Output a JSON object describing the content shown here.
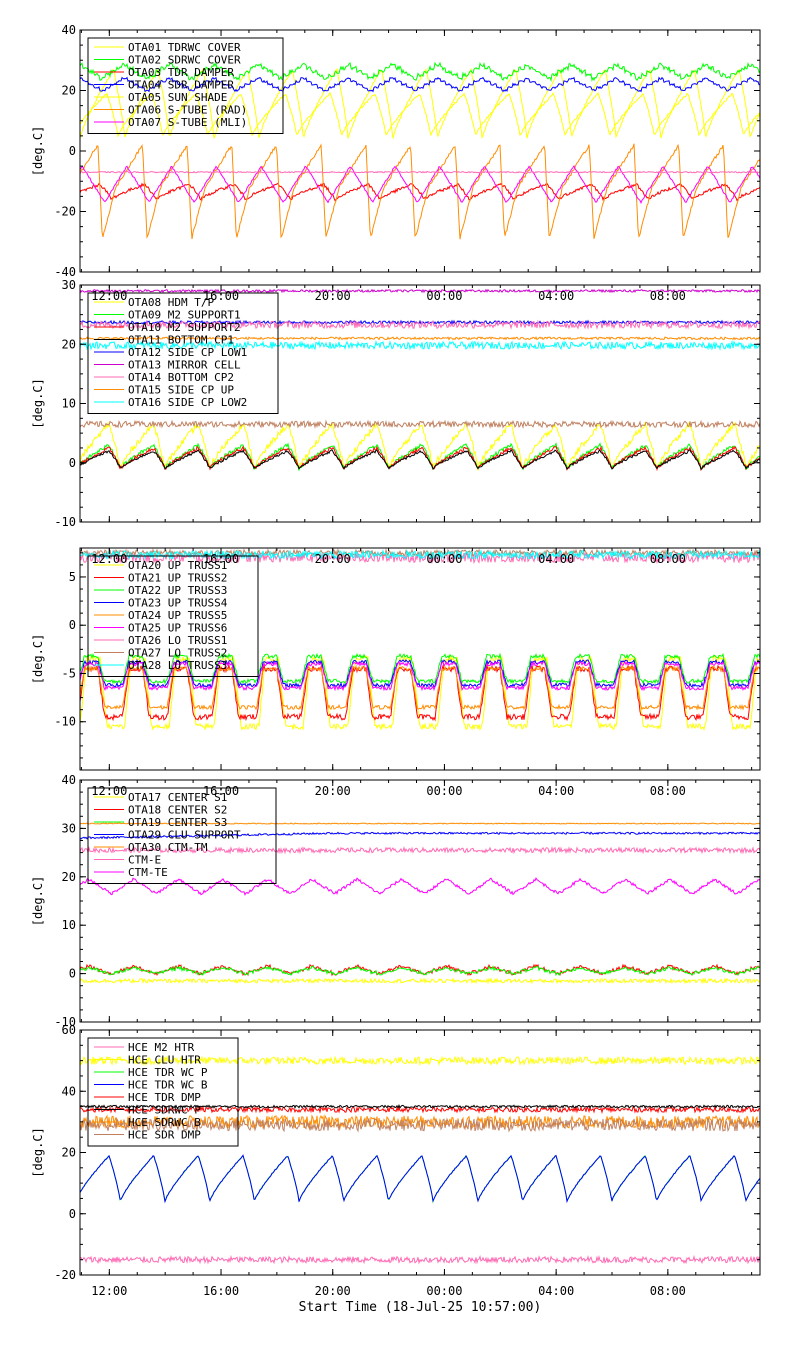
{
  "x_axis": {
    "title": "Start Time (18-Jul-25 10:57:00)",
    "tick_labels": [
      "12:00",
      "16:00",
      "20:00",
      "00:00",
      "04:00",
      "08:00"
    ],
    "tick_hours": [
      12,
      16,
      20,
      24,
      28,
      32
    ],
    "range_hours": [
      10.95,
      35.3
    ]
  },
  "chart_data": [
    {
      "type": "line",
      "ylabel": "[deg.C]",
      "ylim": [
        -40,
        40
      ],
      "yticks": [
        -40,
        -20,
        0,
        20,
        40
      ],
      "x_tick_labels_shown": false,
      "legend": "top-left",
      "series": [
        {
          "name": "OTA01 TDRWC COVER",
          "color": "#ffff00",
          "wave": {
            "type": "saw",
            "min": 4,
            "max": 27,
            "phase": 0.0,
            "noise": 0.3
          }
        },
        {
          "name": "OTA02 SDRWC COVER",
          "color": "#00ff00",
          "wave": {
            "type": "step",
            "min": 24,
            "max": 28.5,
            "phase": 0.5,
            "noise": 0.6
          }
        },
        {
          "name": "OTA03 TDR DAMPER",
          "color": "#ff0000",
          "wave": {
            "type": "saw",
            "min": -16,
            "max": -11,
            "phase": 0.3,
            "noise": 0.5
          }
        },
        {
          "name": "OTA04 SDR DAMPER",
          "color": "#0000ff",
          "wave": {
            "type": "step",
            "min": 20,
            "max": 24,
            "phase": 0.5,
            "noise": 0.3
          }
        },
        {
          "name": "OTA05 SUN SHADE",
          "color": "#ffff00",
          "wave": {
            "type": "saw",
            "min": 5,
            "max": 19,
            "phase": 0.15,
            "noise": 0.3
          }
        },
        {
          "name": "OTA06 S-TUBE (RAD)",
          "color": "#ff8c00",
          "wave": {
            "type": "spike",
            "min": -29,
            "max": 2,
            "phase": 0.2,
            "noise": 0.5
          }
        },
        {
          "name": "OTA07 S-TUBE (MLI)",
          "color": "#ff00ff",
          "wave": {
            "type": "tri",
            "min": -17,
            "max": -5,
            "phase": 0.45,
            "noise": 0.3
          }
        },
        {
          "name": "",
          "color": "#ff69b4",
          "wave": {
            "type": "flat",
            "min": -7,
            "max": -7,
            "phase": 0,
            "noise": 0.2
          }
        }
      ]
    },
    {
      "type": "line",
      "ylabel": "[deg.C]",
      "ylim": [
        -10,
        30
      ],
      "yticks": [
        -10,
        0,
        10,
        20,
        30
      ],
      "x_tick_labels_shown": true,
      "legend": "top-left",
      "series": [
        {
          "name": "OTA08 HDM T/P",
          "color": "#ffff00",
          "wave": {
            "type": "saw",
            "min": -1,
            "max": 6.5,
            "phase": 0.1,
            "noise": 0.5
          }
        },
        {
          "name": "OTA09 M2 SUPPORT1",
          "color": "#00ff00",
          "wave": {
            "type": "saw",
            "min": -1,
            "max": 3,
            "phase": 0.1,
            "noise": 0.3
          }
        },
        {
          "name": "OTA10 M2 SUPPORT2",
          "color": "#ff0000",
          "wave": {
            "type": "saw",
            "min": -1,
            "max": 2.5,
            "phase": 0.1,
            "noise": 0.3
          }
        },
        {
          "name": "OTA11 BOTTOM CP1",
          "color": "#000000",
          "wave": {
            "type": "saw",
            "min": -1,
            "max": 2,
            "phase": 0.1,
            "noise": 0.2
          }
        },
        {
          "name": "OTA12 SIDE CP LOW1",
          "color": "#0000ff",
          "wave": {
            "type": "flat",
            "min": 23.7,
            "max": 23.7,
            "phase": 0,
            "noise": 0.25
          }
        },
        {
          "name": "OTA13 MIRROR CELL",
          "color": "#cc00cc",
          "wave": {
            "type": "flat",
            "min": 29,
            "max": 29,
            "phase": 0,
            "noise": 0.2
          }
        },
        {
          "name": "OTA14 BOTTOM CP2",
          "color": "#ff69b4",
          "wave": {
            "type": "flat",
            "min": 23.3,
            "max": 23.3,
            "phase": 0,
            "noise": 0.6
          }
        },
        {
          "name": "OTA15 SIDE CP UP",
          "color": "#ff8c00",
          "wave": {
            "type": "flat",
            "min": 21,
            "max": 21,
            "phase": 0,
            "noise": 0.2
          }
        },
        {
          "name": "OTA16 SIDE CP LOW2",
          "color": "#00ffff",
          "wave": {
            "type": "flat",
            "min": 19.8,
            "max": 19.8,
            "phase": 0,
            "noise": 0.6
          }
        },
        {
          "name": "",
          "color": "#c08060",
          "wave": {
            "type": "flat",
            "min": 6.5,
            "max": 6.5,
            "phase": 0,
            "noise": 0.5
          }
        }
      ]
    },
    {
      "type": "line",
      "ylabel": "[deg.C]",
      "ylim": [
        -15,
        8
      ],
      "yticks": [
        -10,
        -5,
        0,
        5
      ],
      "x_tick_labels_shown": true,
      "legend": "top-left",
      "series": [
        {
          "name": "OTA20 UP TRUSS1",
          "color": "#ffff00",
          "wave": {
            "type": "trap",
            "min": -10.5,
            "max": -3.5,
            "phase": 0.0,
            "noise": 0.3
          }
        },
        {
          "name": "OTA21 UP TRUSS2",
          "color": "#ff0000",
          "wave": {
            "type": "trap",
            "min": -9.5,
            "max": -4.5,
            "phase": 0.05,
            "noise": 0.3
          }
        },
        {
          "name": "OTA22 UP TRUSS3",
          "color": "#00ff00",
          "wave": {
            "type": "trap",
            "min": -5.8,
            "max": -3.2,
            "phase": 0.05,
            "noise": 0.2
          }
        },
        {
          "name": "OTA23 UP TRUSS4",
          "color": "#0000ff",
          "wave": {
            "type": "trap",
            "min": -6.2,
            "max": -3.8,
            "phase": 0.05,
            "noise": 0.2
          }
        },
        {
          "name": "OTA24 UP TRUSS5",
          "color": "#ff8c00",
          "wave": {
            "type": "trap",
            "min": -8.5,
            "max": -4.5,
            "phase": 0.05,
            "noise": 0.2
          }
        },
        {
          "name": "OTA25 UP TRUSS6",
          "color": "#ff00ff",
          "wave": {
            "type": "trap",
            "min": -6.5,
            "max": -4,
            "phase": 0.05,
            "noise": 0.2
          }
        },
        {
          "name": "OTA26 LO TRUSS1",
          "color": "#ff69b4",
          "wave": {
            "type": "flat",
            "min": 7,
            "max": 7,
            "phase": 0,
            "noise": 0.5
          }
        },
        {
          "name": "OTA27 LO TRUSS2",
          "color": "#c08060",
          "wave": {
            "type": "flat",
            "min": 7.5,
            "max": 7.5,
            "phase": 0,
            "noise": 0.3
          }
        },
        {
          "name": "OTA28 LO TRUSS3",
          "color": "#00ffff",
          "wave": {
            "type": "flat",
            "min": 7.3,
            "max": 7.3,
            "phase": 0,
            "noise": 0.4
          }
        }
      ]
    },
    {
      "type": "line",
      "ylabel": "[deg.C]",
      "ylim": [
        -10,
        40
      ],
      "yticks": [
        -10,
        0,
        10,
        20,
        30,
        40
      ],
      "x_tick_labels_shown": true,
      "legend": "top-left",
      "series": [
        {
          "name": "OTA17 CENTER S1",
          "color": "#ffff00",
          "wave": {
            "type": "flat",
            "min": -1.5,
            "max": -1.5,
            "phase": 0,
            "noise": 0.4
          }
        },
        {
          "name": "OTA18 CENTER S2",
          "color": "#ff0000",
          "wave": {
            "type": "step",
            "min": 0,
            "max": 1.5,
            "phase": 0.3,
            "noise": 0.3
          }
        },
        {
          "name": "OTA19 CENTER S3",
          "color": "#00ff00",
          "wave": {
            "type": "step",
            "min": 0,
            "max": 1.2,
            "phase": 0.3,
            "noise": 0.3
          }
        },
        {
          "name": "OTA29 CLU SUPPORT",
          "color": "#0000ff",
          "wave": {
            "type": "ramp",
            "min": 28,
            "max": 29,
            "phase": 0,
            "noise": 0.2
          }
        },
        {
          "name": "OTA30 CTM-TM",
          "color": "#ff8c00",
          "wave": {
            "type": "flat",
            "min": 31,
            "max": 31,
            "phase": 0,
            "noise": 0.1
          }
        },
        {
          "name": "CTM-E",
          "color": "#ff69b4",
          "wave": {
            "type": "flat",
            "min": 25.5,
            "max": 25.5,
            "phase": 0,
            "noise": 0.5
          }
        },
        {
          "name": "CTM-TE",
          "color": "#ff00ff",
          "wave": {
            "type": "tri",
            "min": 16.5,
            "max": 19.5,
            "phase": 0.3,
            "noise": 0.3
          }
        }
      ]
    },
    {
      "type": "line",
      "ylabel": "[deg.C]",
      "ylim": [
        -20,
        60
      ],
      "yticks": [
        -20,
        0,
        20,
        40,
        60
      ],
      "x_tick_labels_shown": true,
      "legend": "top-left",
      "series": [
        {
          "name": "HCE M2 HTR",
          "color": "#ff69b4",
          "wave": {
            "type": "flat",
            "min": -15,
            "max": -15,
            "phase": 0,
            "noise": 1.0
          }
        },
        {
          "name": "HCE CLU HTR",
          "color": "#ffff00",
          "wave": {
            "type": "flat",
            "min": 50,
            "max": 50,
            "phase": 0,
            "noise": 1.2
          }
        },
        {
          "name": "HCE TDR WC P",
          "color": "#00ff00",
          "wave": {
            "type": "saw",
            "min": 4,
            "max": 19,
            "phase": 0.1,
            "noise": 0.1
          }
        },
        {
          "name": "HCE TDR WC B",
          "color": "#0000ff",
          "wave": {
            "type": "saw",
            "min": 4,
            "max": 19,
            "phase": 0.1,
            "noise": 0.2
          }
        },
        {
          "name": "HCE TDR DMP",
          "color": "#ff0000",
          "wave": {
            "type": "flat",
            "min": 34,
            "max": 34,
            "phase": 0,
            "noise": 0.8
          }
        },
        {
          "name": "HCE SDRWC P",
          "color": "#000000",
          "wave": {
            "type": "flat",
            "min": 35,
            "max": 35,
            "phase": 0,
            "noise": 0.4
          }
        },
        {
          "name": "HCE SDRWC B",
          "color": "#ff8c00",
          "wave": {
            "type": "flat",
            "min": 30,
            "max": 30,
            "phase": 0,
            "noise": 2.0
          }
        },
        {
          "name": "HCE SDR DMP",
          "color": "#c08060",
          "wave": {
            "type": "flat",
            "min": 29,
            "max": 29,
            "phase": 0,
            "noise": 2.0
          }
        }
      ]
    }
  ]
}
